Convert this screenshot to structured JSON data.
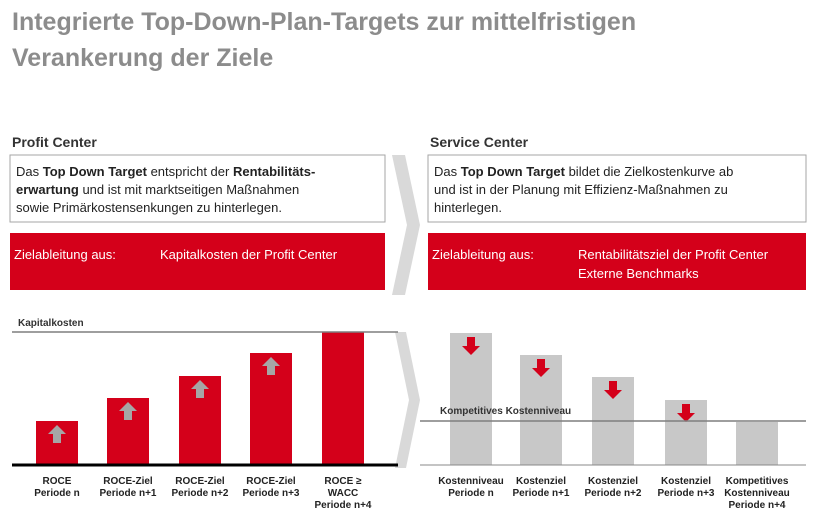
{
  "title": {
    "lines": [
      "Integrierte Top-Down-Plan-Targets zur mittelfristigen",
      "Verankerung der Ziele"
    ]
  },
  "left": {
    "heading": "Profit Center",
    "description": [
      [
        {
          "text": "Das ",
          "bold": false
        },
        {
          "text": "Top Down Target",
          "bold": true
        },
        {
          "text": " entspricht der ",
          "bold": false
        },
        {
          "text": "Rentabilitäts-",
          "bold": true
        }
      ],
      [
        {
          "text": "erwartung",
          "bold": true
        },
        {
          "text": " und ist mit marktseitigen Maßnahmen",
          "bold": false
        }
      ],
      [
        {
          "text": "sowie Primärkostensenkungen zu hinterlegen.",
          "bold": false
        }
      ]
    ],
    "banner": {
      "label": "Zielableitung aus:",
      "value": [
        "Kapitalkosten der Profit Center"
      ]
    },
    "reference_line": "Kapitalkosten",
    "bars": [
      [
        "ROCE",
        "Periode n"
      ],
      [
        "ROCE-Ziel",
        "Periode n+1"
      ],
      [
        "ROCE-Ziel",
        "Periode n+2"
      ],
      [
        "ROCE-Ziel",
        "Periode n+3"
      ],
      [
        "ROCE ≥",
        "WACC",
        "Periode n+4"
      ]
    ]
  },
  "right": {
    "heading": "Service Center",
    "description": [
      [
        {
          "text": "Das ",
          "bold": false
        },
        {
          "text": "Top Down Target",
          "bold": true
        },
        {
          "text": " bildet die Zielkostenkurve ab",
          "bold": false
        }
      ],
      [
        {
          "text": "und ist in der Planung mit Effizienz-Maßnahmen zu",
          "bold": false
        }
      ],
      [
        {
          "text": "hinterlegen.",
          "bold": false
        }
      ]
    ],
    "banner": {
      "label": "Zielableitung aus:",
      "value": [
        "Rentabilitätsziel der Profit Center",
        "Externe Benchmarks"
      ]
    },
    "reference_line": "Kompetitives Kostenniveau",
    "bars": [
      [
        "Kostenniveau",
        "Periode n"
      ],
      [
        "Kostenziel",
        "Periode n+1"
      ],
      [
        "Kostenziel",
        "Periode n+2"
      ],
      [
        "Kostenziel",
        "Periode n+3"
      ],
      [
        "Kompetitives",
        "Kostenniveau",
        "Periode n+4"
      ]
    ]
  }
}
